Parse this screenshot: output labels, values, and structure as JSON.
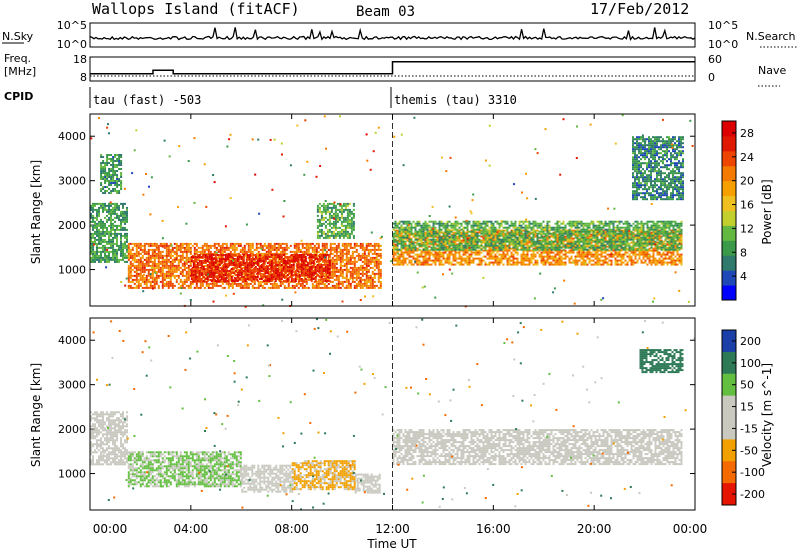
{
  "header": {
    "station": "Wallops Island (fitACF)",
    "beam": "Beam 03",
    "date": "17/Feb/2012"
  },
  "strips": {
    "nsky_label": "N.Sky",
    "nsky_ticks": [
      "10^5",
      "10^0"
    ],
    "nsearch_label": "N.Search",
    "nsearch_ticks": [
      "10^5",
      "10^0"
    ],
    "freq_label": "Freq.",
    "freq_unit": "[MHz]",
    "freq_ticks": [
      "18",
      "8"
    ],
    "nave_label": "Nave",
    "nave_ticks": [
      "60",
      "0"
    ],
    "cpid_label": "CPID",
    "cpid_segments": [
      {
        "label": "tau (fast) -503",
        "start_hour": 0,
        "end_hour": 12
      },
      {
        "label": "themis (tau) 3310",
        "start_hour": 12,
        "end_hour": 24
      }
    ],
    "frequency_steps": [
      {
        "start_hour": 0.0,
        "end_hour": 2.5,
        "mhz": 11
      },
      {
        "start_hour": 2.5,
        "end_hour": 3.3,
        "mhz": 12.5
      },
      {
        "start_hour": 3.3,
        "end_hour": 12.0,
        "mhz": 11
      },
      {
        "start_hour": 12.0,
        "end_hour": 24.0,
        "mhz": 16
      }
    ]
  },
  "chart_data": [
    {
      "type": "heatmap",
      "title": "",
      "ylabel": "Slant Range [km]",
      "xlabel": "Time UT",
      "x_unit": "hour",
      "xlim": [
        0,
        24
      ],
      "ylim": [
        180,
        4500
      ],
      "y_ticks": [
        "1000",
        "2000",
        "3000",
        "4000"
      ],
      "y_tick_values": [
        1000,
        2000,
        3000,
        4000
      ],
      "colorbar": {
        "label": "Power [dB]",
        "ticks": [
          "28",
          "24",
          "20",
          "16",
          "12",
          "8",
          "4"
        ],
        "tick_values": [
          28,
          24,
          20,
          16,
          12,
          8,
          4
        ],
        "range": [
          0,
          30
        ],
        "colors": [
          "#0000ff",
          "#1e48b8",
          "#2f7a6d",
          "#3a9a4a",
          "#63b842",
          "#c2cf2d",
          "#f0c020",
          "#f5a000",
          "#f47a00",
          "#ee4500",
          "#e01800",
          "#dd0000"
        ]
      },
      "bands": [
        {
          "start_hour": 0.0,
          "end_hour": 1.5,
          "range_low_km": 1150,
          "range_high_km": 2500,
          "power_db": 9
        },
        {
          "start_hour": 0.4,
          "end_hour": 1.2,
          "range_low_km": 2700,
          "range_high_km": 3600,
          "power_db": 8
        },
        {
          "start_hour": 1.5,
          "end_hour": 11.5,
          "range_low_km": 600,
          "range_high_km": 1600,
          "power_db": 22
        },
        {
          "start_hour": 4.0,
          "end_hour": 9.5,
          "range_low_km": 750,
          "range_high_km": 1350,
          "power_db": 26
        },
        {
          "start_hour": 9.0,
          "end_hour": 10.5,
          "range_low_km": 1700,
          "range_high_km": 2500,
          "power_db": 10
        },
        {
          "start_hour": 12.0,
          "end_hour": 23.5,
          "range_low_km": 1100,
          "range_high_km": 1900,
          "power_db": 20
        },
        {
          "start_hour": 12.0,
          "end_hour": 23.5,
          "range_low_km": 1450,
          "range_high_km": 2100,
          "power_db": 10
        },
        {
          "start_hour": 21.5,
          "end_hour": 23.5,
          "range_low_km": 2600,
          "range_high_km": 4000,
          "power_db": 7
        }
      ]
    },
    {
      "type": "heatmap",
      "title": "",
      "ylabel": "Slant Range [km]",
      "xlabel": "Time UT",
      "x_unit": "hour",
      "xlim": [
        0,
        24
      ],
      "ylim": [
        180,
        4500
      ],
      "x_ticks": [
        "00:00",
        "04:00",
        "08:00",
        "12:00",
        "16:00",
        "20:00",
        "00:00"
      ],
      "x_tick_values": [
        0,
        4,
        8,
        12,
        16,
        20,
        24
      ],
      "y_ticks": [
        "1000",
        "2000",
        "3000",
        "4000"
      ],
      "y_tick_values": [
        1000,
        2000,
        3000,
        4000
      ],
      "colorbar": {
        "label": "Velocity [m s^-1]",
        "ticks": [
          "200",
          "100",
          "50",
          "15",
          "-15",
          "-50",
          "-100",
          "-200"
        ],
        "tick_values": [
          200,
          100,
          50,
          15,
          -15,
          -50,
          -100,
          -200
        ],
        "colors": [
          "#1a3fa8",
          "#2e7a57",
          "#62bf3f",
          "#c9c9c0",
          "#c9c9c0",
          "#f2a000",
          "#f46a00",
          "#e51500"
        ]
      },
      "bands": [
        {
          "start_hour": 0.0,
          "end_hour": 1.5,
          "range_low_km": 1200,
          "range_high_km": 2400,
          "velocity": 0
        },
        {
          "start_hour": 1.5,
          "end_hour": 6.0,
          "range_low_km": 700,
          "range_high_km": 1500,
          "velocity": 35
        },
        {
          "start_hour": 6.0,
          "end_hour": 8.0,
          "range_low_km": 600,
          "range_high_km": 1200,
          "velocity": 0
        },
        {
          "start_hour": 8.0,
          "end_hour": 10.5,
          "range_low_km": 650,
          "range_high_km": 1300,
          "velocity": -40
        },
        {
          "start_hour": 10.5,
          "end_hour": 11.5,
          "range_low_km": 550,
          "range_high_km": 1000,
          "velocity": 0
        },
        {
          "start_hour": 12.0,
          "end_hour": 23.5,
          "range_low_km": 1200,
          "range_high_km": 2000,
          "velocity": 0
        },
        {
          "start_hour": 21.8,
          "end_hour": 23.5,
          "range_low_km": 3300,
          "range_high_km": 3800,
          "velocity": 120
        }
      ]
    }
  ]
}
